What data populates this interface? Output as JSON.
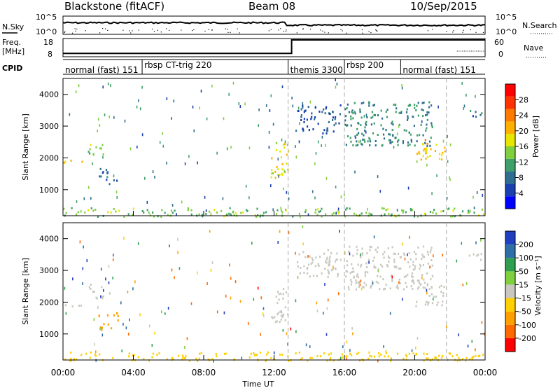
{
  "header": {
    "station": "Blackstone (fitACF)",
    "beam": "Beam 08",
    "date": "10/Sep/2015"
  },
  "top_labels": {
    "nsky": "N.Sky",
    "freq": "Freq.",
    "freq_unit": "[MHz]",
    "cpid": "CPID",
    "nsearch": "N.Search",
    "nave": "Nave"
  },
  "colors": {
    "power": [
      "#0000ff",
      "#1a3fae",
      "#2e6e8e",
      "#3f9f6a",
      "#7fcf3f",
      "#e6e600",
      "#ffb000",
      "#ff7a00",
      "#ff3300",
      "#ff0000"
    ],
    "velocity": [
      "#1f3fbf",
      "#2e6fa8",
      "#2f9f4f",
      "#7fcf3f",
      "#c8c8c0",
      "#ffd000",
      "#ffa000",
      "#ff6a00",
      "#ff0000"
    ]
  },
  "chart_data": [
    {
      "type": "line",
      "name": "top-panel",
      "series": [
        {
          "name": "N.Sky"
        },
        {
          "name": "N.Search"
        }
      ],
      "y_left_ticks": [
        "10^5",
        "10^0"
      ],
      "y_right_ticks": [
        "10^5",
        "10^0"
      ]
    },
    {
      "type": "line",
      "name": "frequency-panel",
      "series": [
        {
          "name": "Freq.",
          "unit": "MHz",
          "x": [
            0,
            13,
            13,
            24
          ],
          "y": [
            10,
            10,
            18,
            18
          ]
        }
      ],
      "y_left_ticks": [
        "18",
        "8"
      ],
      "y_right_ticks": [
        "60",
        "0"
      ]
    },
    {
      "type": "table",
      "name": "cpid-panel",
      "segments": [
        {
          "label": "normal (fast) 151",
          "start": 0,
          "end": 4.5
        },
        {
          "label": "rbsp CT-trig 220",
          "start": 4.5,
          "end": 12.8
        },
        {
          "label": "themis 3300",
          "start": 12.8,
          "end": 16
        },
        {
          "label": "rbsp 200",
          "start": 16,
          "end": 19.2
        },
        {
          "label": "normal (fast) 151",
          "start": 19.2,
          "end": 24
        }
      ]
    },
    {
      "type": "heatmap",
      "name": "power",
      "xlabel": "",
      "ylabel": "Slant Range [km]",
      "xlim": [
        0,
        24
      ],
      "ylim": [
        180,
        4500
      ],
      "yticks": [
        1000,
        2000,
        3000,
        4000
      ],
      "colorbar_label": "Power [dB]",
      "colorbar_ticks": [
        "28",
        "24",
        "20",
        "16",
        "12",
        "8",
        "4"
      ],
      "features": [
        {
          "t0": 0,
          "t1": 1.4,
          "r0": 1850,
          "r1": 1950,
          "val": 18
        },
        {
          "t0": 1.4,
          "t1": 2.3,
          "r0": 2100,
          "r1": 2600,
          "val": 14
        },
        {
          "t0": 2.0,
          "t1": 3.1,
          "r0": 1200,
          "r1": 1700,
          "val": 7
        },
        {
          "t0": 11.8,
          "t1": 12.8,
          "r0": 1400,
          "r1": 2500,
          "val": 17
        },
        {
          "t0": 13.2,
          "t1": 15.8,
          "r0": 2800,
          "r1": 3700,
          "val": 6
        },
        {
          "t0": 16.0,
          "t1": 21.0,
          "r0": 2400,
          "r1": 3800,
          "val": 9
        },
        {
          "t0": 20.0,
          "t1": 21.7,
          "r0": 1900,
          "r1": 2600,
          "val": 19
        },
        {
          "t0": 23.0,
          "t1": 23.8,
          "r0": 3300,
          "r1": 3600,
          "val": 8
        },
        {
          "t0": 0,
          "t1": 24,
          "r0": 180,
          "r1": 450,
          "val": 13
        }
      ]
    },
    {
      "type": "heatmap",
      "name": "velocity",
      "xlabel": "Time UT",
      "ylabel": "Slant Range [km]",
      "xlim": [
        0,
        24
      ],
      "ylim": [
        180,
        4500
      ],
      "yticks": [
        1000,
        2000,
        3000,
        4000
      ],
      "xticks": [
        "00:00",
        "04:00",
        "08:00",
        "12:00",
        "16:00",
        "20:00",
        "00:00"
      ],
      "colorbar_label": "Velocity [m s⁻¹]",
      "colorbar_ticks": [
        "200",
        "100",
        "50",
        "15",
        "-15",
        "-50",
        "-100",
        "-200"
      ],
      "features": [
        {
          "t0": 0,
          "t1": 1.4,
          "r0": 1850,
          "r1": 1950,
          "val": 0
        },
        {
          "t0": 1.4,
          "t1": 2.3,
          "r0": 2100,
          "r1": 2600,
          "val": 0
        },
        {
          "t0": 2.0,
          "t1": 3.1,
          "r0": 1200,
          "r1": 1700,
          "val": -60
        },
        {
          "t0": 11.8,
          "t1": 12.8,
          "r0": 1400,
          "r1": 2500,
          "val": 0
        },
        {
          "t0": 13.2,
          "t1": 15.8,
          "r0": 2800,
          "r1": 3700,
          "val": 0
        },
        {
          "t0": 16.0,
          "t1": 21.0,
          "r0": 2400,
          "r1": 3800,
          "val": 0
        },
        {
          "t0": 20.0,
          "t1": 21.7,
          "r0": 1900,
          "r1": 2600,
          "val": 0
        },
        {
          "t0": 23.0,
          "t1": 23.8,
          "r0": 3300,
          "r1": 3600,
          "val": 0
        },
        {
          "t0": 0,
          "t1": 24,
          "r0": 180,
          "r1": 450,
          "val": -30
        }
      ]
    }
  ]
}
